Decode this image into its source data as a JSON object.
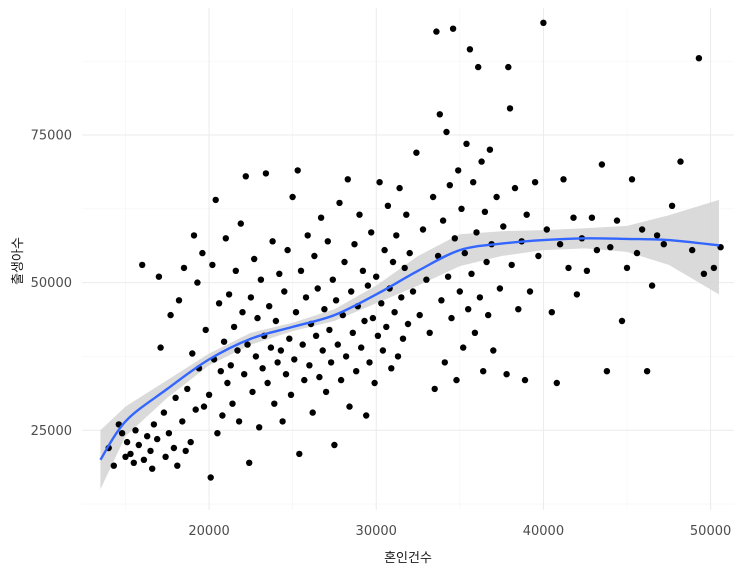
{
  "chart_data": {
    "type": "scatter",
    "xlabel": "혼인건수",
    "ylabel": "출생아수",
    "xlim": [
      12400,
      51400
    ],
    "ylim": [
      11500,
      96500
    ],
    "x_ticks": [
      20000,
      30000,
      40000,
      50000
    ],
    "y_ticks": [
      25000,
      50000,
      75000
    ],
    "x_tick_labels": [
      "20000",
      "30000",
      "40000",
      "50000"
    ],
    "y_tick_labels": [
      "25000",
      "50000",
      "75000"
    ],
    "grid": true,
    "legend": "none",
    "point_color": "#000000",
    "smooth_color": "#3366FF",
    "ribbon_color": "#d4d4d4",
    "smooth": {
      "x": [
        13500,
        15000,
        17500,
        20000,
        22500,
        25000,
        27500,
        30000,
        32500,
        35000,
        37500,
        40000,
        42500,
        45000,
        47500,
        50500
      ],
      "y": [
        20000,
        26500,
        32000,
        37000,
        40500,
        42500,
        44500,
        48000,
        52000,
        55500,
        56600,
        57200,
        57500,
        57400,
        57200,
        56300
      ],
      "lower": [
        15000,
        24000,
        30500,
        36000,
        39500,
        41800,
        43500,
        46500,
        49500,
        52800,
        54500,
        55500,
        55800,
        55200,
        53000,
        48000
      ],
      "upper": [
        25000,
        29000,
        33500,
        38000,
        41500,
        43200,
        45500,
        49500,
        54500,
        58200,
        58700,
        58900,
        59200,
        59600,
        61400,
        64000
      ]
    },
    "points": [
      [
        14000,
        22000
      ],
      [
        14300,
        19000
      ],
      [
        14600,
        26000
      ],
      [
        14800,
        24500
      ],
      [
        15000,
        20500
      ],
      [
        15100,
        23000
      ],
      [
        15300,
        21000
      ],
      [
        15500,
        19500
      ],
      [
        15600,
        25000
      ],
      [
        15800,
        22500
      ],
      [
        16000,
        53000
      ],
      [
        16100,
        20000
      ],
      [
        16300,
        24000
      ],
      [
        16500,
        21500
      ],
      [
        16600,
        18500
      ],
      [
        16700,
        26000
      ],
      [
        16900,
        23500
      ],
      [
        17000,
        51000
      ],
      [
        17100,
        39000
      ],
      [
        17300,
        28000
      ],
      [
        17400,
        20500
      ],
      [
        17600,
        24500
      ],
      [
        17700,
        44500
      ],
      [
        17900,
        22000
      ],
      [
        18000,
        30500
      ],
      [
        18100,
        19000
      ],
      [
        18200,
        47000
      ],
      [
        18400,
        26500
      ],
      [
        18500,
        52500
      ],
      [
        18600,
        21500
      ],
      [
        18700,
        32000
      ],
      [
        18900,
        23000
      ],
      [
        19000,
        38000
      ],
      [
        19100,
        58000
      ],
      [
        19200,
        28500
      ],
      [
        19300,
        50000
      ],
      [
        19400,
        35500
      ],
      [
        19600,
        55000
      ],
      [
        19700,
        29000
      ],
      [
        19800,
        42000
      ],
      [
        20000,
        31000
      ],
      [
        20100,
        17000
      ],
      [
        20200,
        53000
      ],
      [
        20300,
        37000
      ],
      [
        20400,
        64000
      ],
      [
        20500,
        24500
      ],
      [
        20600,
        46500
      ],
      [
        20700,
        35000
      ],
      [
        20800,
        27500
      ],
      [
        20900,
        40000
      ],
      [
        21000,
        57500
      ],
      [
        21100,
        33000
      ],
      [
        21200,
        48000
      ],
      [
        21300,
        36000
      ],
      [
        21400,
        29500
      ],
      [
        21500,
        42500
      ],
      [
        21600,
        52000
      ],
      [
        21700,
        38500
      ],
      [
        21800,
        26500
      ],
      [
        21900,
        60000
      ],
      [
        22000,
        45000
      ],
      [
        22100,
        34500
      ],
      [
        22200,
        68000
      ],
      [
        22300,
        39500
      ],
      [
        22400,
        19500
      ],
      [
        22500,
        47500
      ],
      [
        22600,
        31500
      ],
      [
        22700,
        54000
      ],
      [
        22800,
        37500
      ],
      [
        22900,
        44000
      ],
      [
        23000,
        25500
      ],
      [
        23100,
        50500
      ],
      [
        23200,
        35500
      ],
      [
        23300,
        41000
      ],
      [
        23400,
        68500
      ],
      [
        23500,
        33000
      ],
      [
        23600,
        46000
      ],
      [
        23700,
        39000
      ],
      [
        23800,
        57000
      ],
      [
        23900,
        29500
      ],
      [
        24000,
        43500
      ],
      [
        24100,
        36500
      ],
      [
        24200,
        51500
      ],
      [
        24300,
        38500
      ],
      [
        24400,
        26500
      ],
      [
        24500,
        48500
      ],
      [
        24600,
        34500
      ],
      [
        24700,
        55500
      ],
      [
        24800,
        40500
      ],
      [
        24900,
        31000
      ],
      [
        25000,
        64500
      ],
      [
        25100,
        37000
      ],
      [
        25200,
        45000
      ],
      [
        25300,
        69000
      ],
      [
        25400,
        21000
      ],
      [
        25500,
        52000
      ],
      [
        25600,
        39500
      ],
      [
        25700,
        33500
      ],
      [
        25800,
        47500
      ],
      [
        25900,
        58000
      ],
      [
        26000,
        36000
      ],
      [
        26100,
        43000
      ],
      [
        26200,
        28000
      ],
      [
        26300,
        54500
      ],
      [
        26400,
        41000
      ],
      [
        26500,
        49000
      ],
      [
        26600,
        34000
      ],
      [
        26700,
        61000
      ],
      [
        26800,
        38500
      ],
      [
        26900,
        45500
      ],
      [
        27000,
        31500
      ],
      [
        27100,
        57000
      ],
      [
        27200,
        42000
      ],
      [
        27300,
        36500
      ],
      [
        27400,
        50500
      ],
      [
        27500,
        22500
      ],
      [
        27600,
        47000
      ],
      [
        27700,
        39500
      ],
      [
        27800,
        63500
      ],
      [
        27900,
        33500
      ],
      [
        28000,
        44500
      ],
      [
        28100,
        53500
      ],
      [
        28200,
        37500
      ],
      [
        28300,
        67500
      ],
      [
        28400,
        29000
      ],
      [
        28500,
        48500
      ],
      [
        28600,
        41500
      ],
      [
        28700,
        56500
      ],
      [
        28800,
        35000
      ],
      [
        28900,
        46000
      ],
      [
        29000,
        61500
      ],
      [
        29100,
        39000
      ],
      [
        29200,
        52000
      ],
      [
        29300,
        43500
      ],
      [
        29400,
        27500
      ],
      [
        29500,
        49500
      ],
      [
        29600,
        36500
      ],
      [
        29700,
        58500
      ],
      [
        29800,
        44000
      ],
      [
        29900,
        33000
      ],
      [
        30000,
        51000
      ],
      [
        30100,
        41000
      ],
      [
        30200,
        67000
      ],
      [
        30300,
        46500
      ],
      [
        30400,
        38500
      ],
      [
        30500,
        55500
      ],
      [
        30600,
        42500
      ],
      [
        30700,
        63000
      ],
      [
        30800,
        49000
      ],
      [
        30900,
        35500
      ],
      [
        31000,
        53500
      ],
      [
        31100,
        45000
      ],
      [
        31200,
        58000
      ],
      [
        31300,
        37500
      ],
      [
        31400,
        66000
      ],
      [
        31500,
        47500
      ],
      [
        31600,
        40500
      ],
      [
        31700,
        52500
      ],
      [
        31800,
        61500
      ],
      [
        31900,
        43000
      ],
      [
        32000,
        55000
      ],
      [
        32200,
        48500
      ],
      [
        32400,
        72000
      ],
      [
        32600,
        44500
      ],
      [
        32800,
        59000
      ],
      [
        33000,
        50500
      ],
      [
        33200,
        41500
      ],
      [
        33400,
        64500
      ],
      [
        33500,
        32000
      ],
      [
        33600,
        92500
      ],
      [
        33700,
        54500
      ],
      [
        33800,
        78500
      ],
      [
        33900,
        47000
      ],
      [
        34000,
        60500
      ],
      [
        34100,
        36500
      ],
      [
        34200,
        75500
      ],
      [
        34300,
        51000
      ],
      [
        34400,
        66500
      ],
      [
        34500,
        44000
      ],
      [
        34600,
        93000
      ],
      [
        34700,
        57500
      ],
      [
        34800,
        33500
      ],
      [
        34900,
        69000
      ],
      [
        35000,
        48500
      ],
      [
        35100,
        62500
      ],
      [
        35200,
        39000
      ],
      [
        35300,
        55000
      ],
      [
        35400,
        73500
      ],
      [
        35500,
        45500
      ],
      [
        35600,
        89500
      ],
      [
        35700,
        51500
      ],
      [
        35800,
        67000
      ],
      [
        35900,
        41500
      ],
      [
        36000,
        58500
      ],
      [
        36100,
        86500
      ],
      [
        36200,
        47500
      ],
      [
        36300,
        70500
      ],
      [
        36400,
        35000
      ],
      [
        36500,
        62000
      ],
      [
        36600,
        53500
      ],
      [
        36700,
        44500
      ],
      [
        36800,
        72500
      ],
      [
        36900,
        56500
      ],
      [
        37000,
        38500
      ],
      [
        37200,
        64500
      ],
      [
        37400,
        49000
      ],
      [
        37600,
        59500
      ],
      [
        37800,
        34500
      ],
      [
        37900,
        86500
      ],
      [
        38000,
        79500
      ],
      [
        38100,
        53000
      ],
      [
        38300,
        66000
      ],
      [
        38500,
        45500
      ],
      [
        38700,
        57000
      ],
      [
        38900,
        33500
      ],
      [
        39000,
        61500
      ],
      [
        39200,
        48500
      ],
      [
        39500,
        67000
      ],
      [
        39700,
        54500
      ],
      [
        40000,
        94000
      ],
      [
        40200,
        59000
      ],
      [
        40500,
        45000
      ],
      [
        40800,
        33000
      ],
      [
        41000,
        56500
      ],
      [
        41200,
        67500
      ],
      [
        41500,
        52500
      ],
      [
        41800,
        61000
      ],
      [
        42000,
        48000
      ],
      [
        42300,
        57500
      ],
      [
        42600,
        52000
      ],
      [
        42900,
        61000
      ],
      [
        43200,
        55500
      ],
      [
        43500,
        70000
      ],
      [
        43800,
        35000
      ],
      [
        44000,
        56000
      ],
      [
        44400,
        60500
      ],
      [
        44700,
        43500
      ],
      [
        45000,
        52500
      ],
      [
        45300,
        67500
      ],
      [
        45600,
        55000
      ],
      [
        45900,
        59000
      ],
      [
        46200,
        35000
      ],
      [
        46500,
        49500
      ],
      [
        46800,
        58000
      ],
      [
        47200,
        56500
      ],
      [
        47700,
        63000
      ],
      [
        48200,
        70500
      ],
      [
        48900,
        55500
      ],
      [
        49300,
        88000
      ],
      [
        49600,
        51500
      ],
      [
        50200,
        52500
      ],
      [
        50600,
        56000
      ]
    ]
  }
}
